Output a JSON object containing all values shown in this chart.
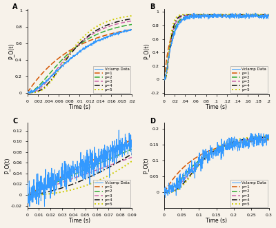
{
  "bg_color": "#f7f2ea",
  "colors": {
    "data": "#3399ff",
    "p1": "#d45500",
    "p2": "#33aa33",
    "p3": "#cc66aa",
    "p4": "#111111",
    "p5": "#cccc00"
  },
  "panel_A": {
    "xlabel": "Time (s)",
    "ylabel": "P_O(t)",
    "xlim": [
      0,
      0.02
    ],
    "ylim": [
      -0.02,
      1.02
    ],
    "xticks": [
      0,
      0.002,
      0.004,
      0.006,
      0.008,
      0.01,
      0.012,
      0.014,
      0.016,
      0.018,
      0.02
    ],
    "xticklabels": [
      "0",
      ".002",
      ".004",
      ".006",
      ".008",
      ".01",
      ".012",
      ".014",
      ".016",
      ".018",
      ".02"
    ],
    "yticks": [
      0.0,
      0.2,
      0.4,
      0.6,
      0.8,
      1.0
    ],
    "yticklabels": [
      "0",
      "0.2",
      "0.4",
      "0.6",
      "0.8",
      "1"
    ]
  },
  "panel_B": {
    "xlabel": "Time (s)",
    "ylabel": "P_O(t)",
    "xlim": [
      0,
      0.2
    ],
    "ylim": [
      -0.22,
      1.05
    ],
    "xticks": [
      0,
      0.02,
      0.04,
      0.06,
      0.08,
      0.1,
      0.12,
      0.14,
      0.16,
      0.18,
      0.2
    ],
    "xticklabels": [
      "0",
      ".02",
      ".04",
      ".06",
      ".08",
      ".1",
      ".12",
      ".14",
      ".16",
      ".18",
      ".2"
    ],
    "yticks": [
      -0.2,
      0.0,
      0.2,
      0.4,
      0.6,
      0.8,
      1.0
    ],
    "yticklabels": [
      "-0.2",
      "0",
      "0.2",
      "0.4",
      "0.6",
      "0.8",
      "1"
    ]
  },
  "panel_C": {
    "xlabel": "Time (s)",
    "ylabel": "P_O(t)",
    "xlim": [
      0,
      0.09
    ],
    "ylim": [
      -0.025,
      0.135
    ],
    "xticks": [
      0,
      0.01,
      0.02,
      0.03,
      0.04,
      0.05,
      0.06,
      0.07,
      0.08,
      0.09
    ],
    "xticklabels": [
      "0",
      "0.01",
      "0.02",
      "0.03",
      "0.04",
      "0.05",
      "0.06",
      "0.07",
      "0.08",
      "0.09"
    ],
    "yticks": [
      -0.02,
      0.0,
      0.02,
      0.04,
      0.06,
      0.08,
      0.1,
      0.12
    ],
    "yticklabels": [
      "-0.02",
      "0",
      "0.02",
      "0.04",
      "0.06",
      "0.08",
      "0.10",
      "0.12"
    ]
  },
  "panel_D": {
    "xlabel": "Time (s)",
    "ylabel": "P_O(t)",
    "xlim": [
      0,
      0.3
    ],
    "ylim": [
      -0.05,
      0.22
    ],
    "xticks": [
      0,
      0.05,
      0.1,
      0.15,
      0.2,
      0.25,
      0.3
    ],
    "xticklabels": [
      "0",
      "0.05",
      "0.1",
      "0.15",
      "0.2",
      "0.25",
      "0.3"
    ],
    "yticks": [
      0.0,
      0.05,
      0.1,
      0.15,
      0.2
    ],
    "yticklabels": [
      "0",
      "0.05",
      "0.1",
      "0.15",
      "0.2"
    ]
  }
}
